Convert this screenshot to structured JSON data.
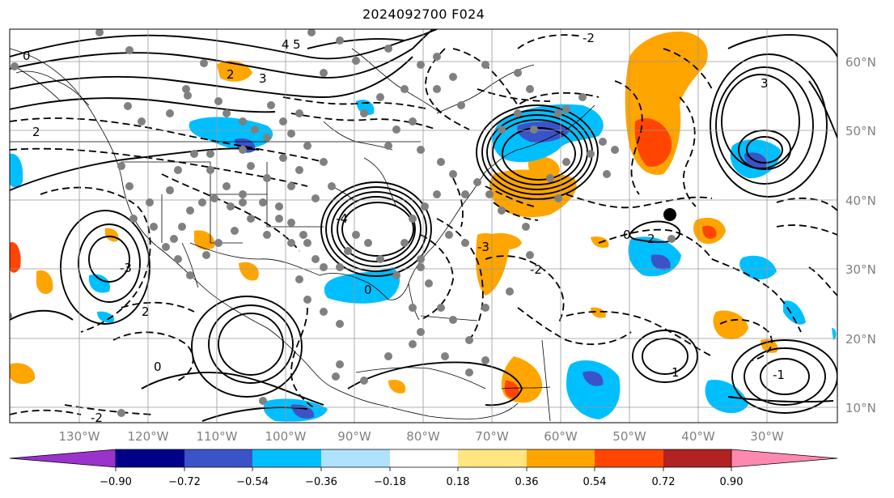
{
  "title": "2024092700 F024",
  "map": {
    "lon_labels": [
      "130°W",
      "120°W",
      "110°W",
      "100°W",
      "90°W",
      "80°W",
      "70°W",
      "60°W",
      "50°W",
      "40°W",
      "30°W"
    ],
    "lat_labels": [
      "60°N",
      "50°N",
      "40°N",
      "30°N",
      "20°N",
      "10°N"
    ],
    "contour_labels": [
      "0",
      "2",
      "3",
      "4",
      "5",
      "-2",
      "-3",
      "-4",
      "-2",
      "0",
      "0",
      "2",
      "-2",
      "2",
      "3",
      "-3",
      "0",
      "1",
      "-1",
      "2"
    ]
  },
  "colorbar": {
    "ticks": [
      "−0.90",
      "−0.72",
      "−0.54",
      "−0.36",
      "−0.18",
      "0.18",
      "0.36",
      "0.54",
      "0.72",
      "0.90"
    ],
    "colors": [
      "#9933cc",
      "#00008b",
      "#3a53c9",
      "#00bfff",
      "#aee2ff",
      "#ffffff",
      "#ffe680",
      "#ffa500",
      "#ff4500",
      "#b22222",
      "#ff88b0"
    ]
  },
  "colors": {
    "orange": "#ffa500",
    "dark_orange": "#ff4500",
    "light_blue": "#00bfff",
    "mid_blue": "#3a53c9",
    "grid": "#999999"
  }
}
